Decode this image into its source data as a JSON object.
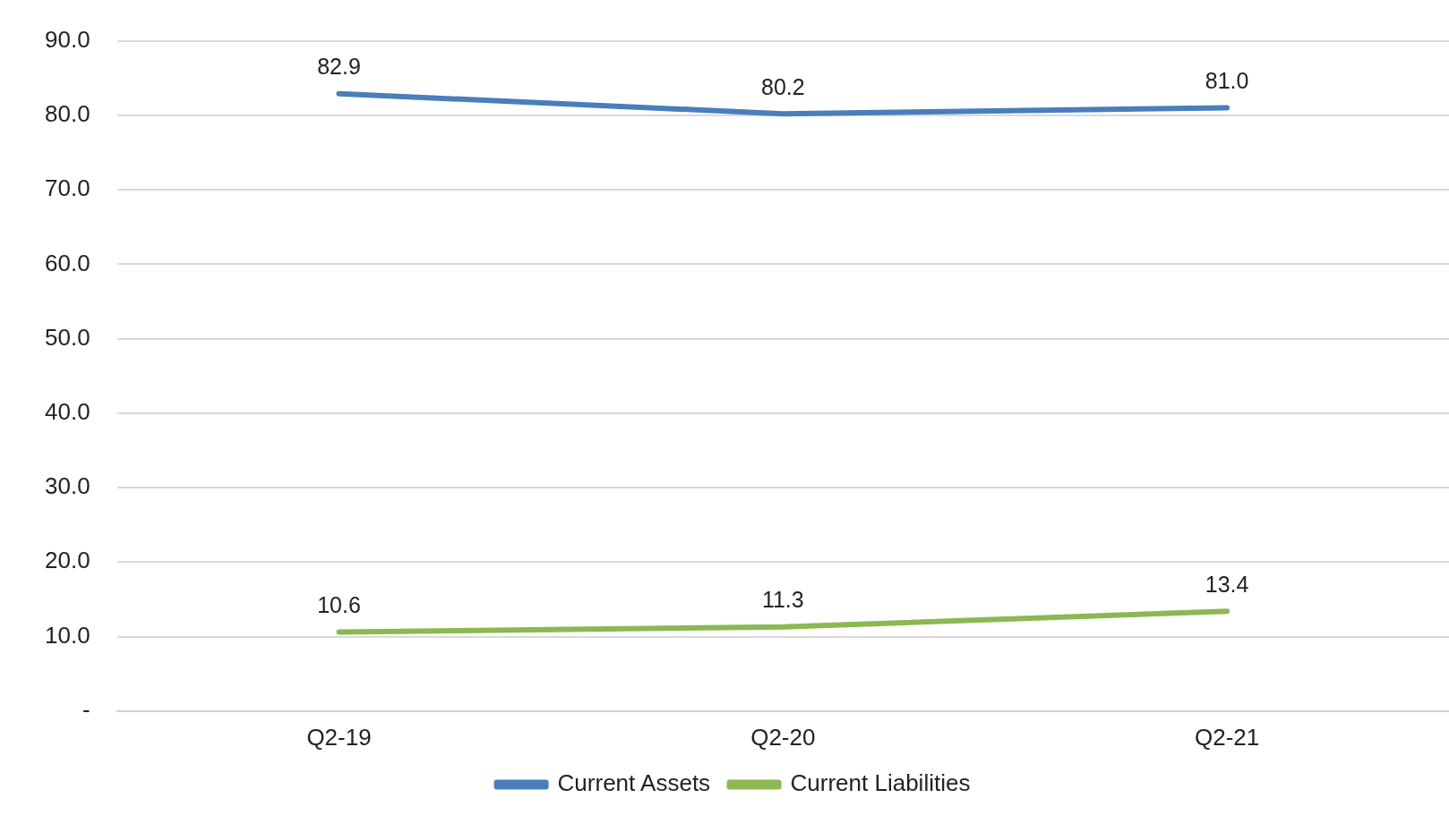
{
  "chart_data": {
    "type": "line",
    "categories": [
      "Q2-19",
      "Q2-20",
      "Q2-21"
    ],
    "series": [
      {
        "name": "Current Assets",
        "color": "#4a7ebb",
        "values": [
          82.9,
          80.2,
          81.0
        ],
        "value_labels": [
          "82.9",
          "80.2",
          "81.0"
        ]
      },
      {
        "name": "Current Liabilities",
        "color": "#8cb852",
        "values": [
          10.6,
          11.3,
          13.4
        ],
        "value_labels": [
          "10.6",
          "11.3",
          "13.4"
        ]
      }
    ],
    "ylim": [
      0,
      90
    ],
    "yticks": [
      {
        "value": 0,
        "label": "-"
      },
      {
        "value": 10,
        "label": "10.0"
      },
      {
        "value": 20,
        "label": "20.0"
      },
      {
        "value": 30,
        "label": "30.0"
      },
      {
        "value": 40,
        "label": "40.0"
      },
      {
        "value": 50,
        "label": "50.0"
      },
      {
        "value": 60,
        "label": "60.0"
      },
      {
        "value": 70,
        "label": "70.0"
      },
      {
        "value": 80,
        "label": "80.0"
      },
      {
        "value": 90,
        "label": "90.0"
      }
    ],
    "grid": "y",
    "legend": "bottom",
    "marker": "none"
  }
}
